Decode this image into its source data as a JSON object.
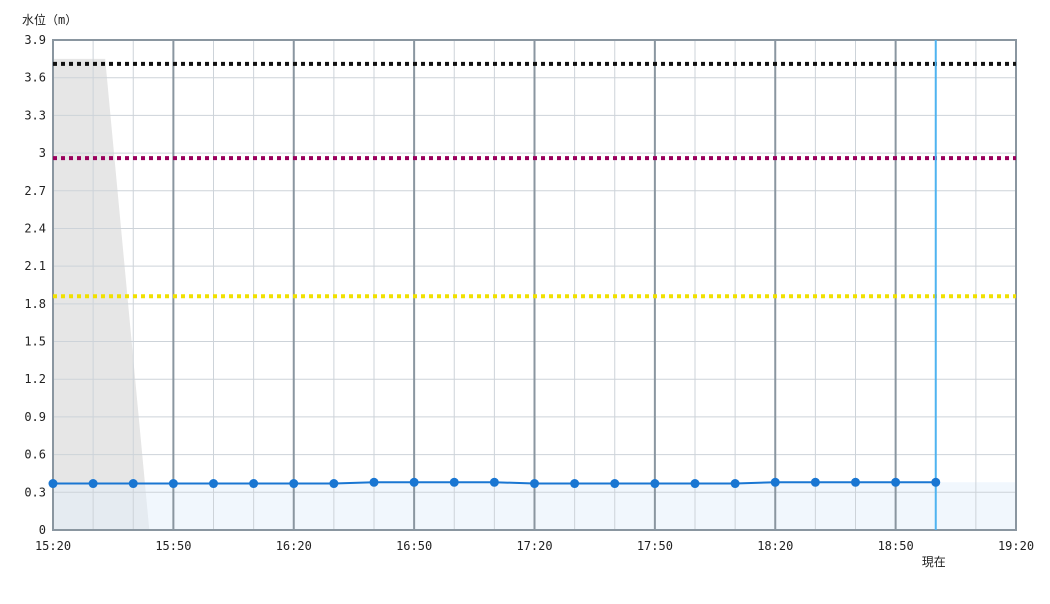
{
  "chart_data": {
    "type": "line",
    "ylabel": "水位（m）",
    "ylim": [
      0,
      3.9
    ],
    "yticks": [
      "0",
      "0.3",
      "0.6",
      "0.9",
      "1.2",
      "1.5",
      "1.8",
      "2.1",
      "2.4",
      "2.7",
      "3",
      "3.3",
      "3.6",
      "3.9"
    ],
    "xlim": [
      "15:20",
      "19:20"
    ],
    "xticks": [
      "15:20",
      "15:50",
      "16:20",
      "16:50",
      "17:20",
      "17:50",
      "18:20",
      "18:50",
      "19:20"
    ],
    "grid": true,
    "now_label": "現在",
    "now_time": "19:00",
    "series": [
      {
        "color": "#1976d2",
        "x": [
          "15:20",
          "15:30",
          "15:40",
          "15:50",
          "16:00",
          "16:10",
          "16:20",
          "16:30",
          "16:40",
          "16:50",
          "17:00",
          "17:10",
          "17:20",
          "17:30",
          "17:40",
          "17:50",
          "18:00",
          "18:10",
          "18:20",
          "18:30",
          "18:40",
          "18:50",
          "19:00"
        ],
        "values": [
          0.37,
          0.37,
          0.37,
          0.37,
          0.37,
          0.37,
          0.37,
          0.37,
          0.38,
          0.38,
          0.38,
          0.38,
          0.37,
          0.37,
          0.37,
          0.37,
          0.37,
          0.37,
          0.38,
          0.38,
          0.38,
          0.38,
          0.38
        ]
      }
    ],
    "threshold_lines": [
      {
        "value": 3.71,
        "color": "#111111"
      },
      {
        "value": 2.96,
        "color": "#99005c"
      },
      {
        "value": 1.86,
        "color": "#f0e000"
      }
    ],
    "shaded_region": {
      "color": "#e6e6e6",
      "top_value": 3.75,
      "top_end": "15:33",
      "bottom_end": "15:44"
    }
  }
}
